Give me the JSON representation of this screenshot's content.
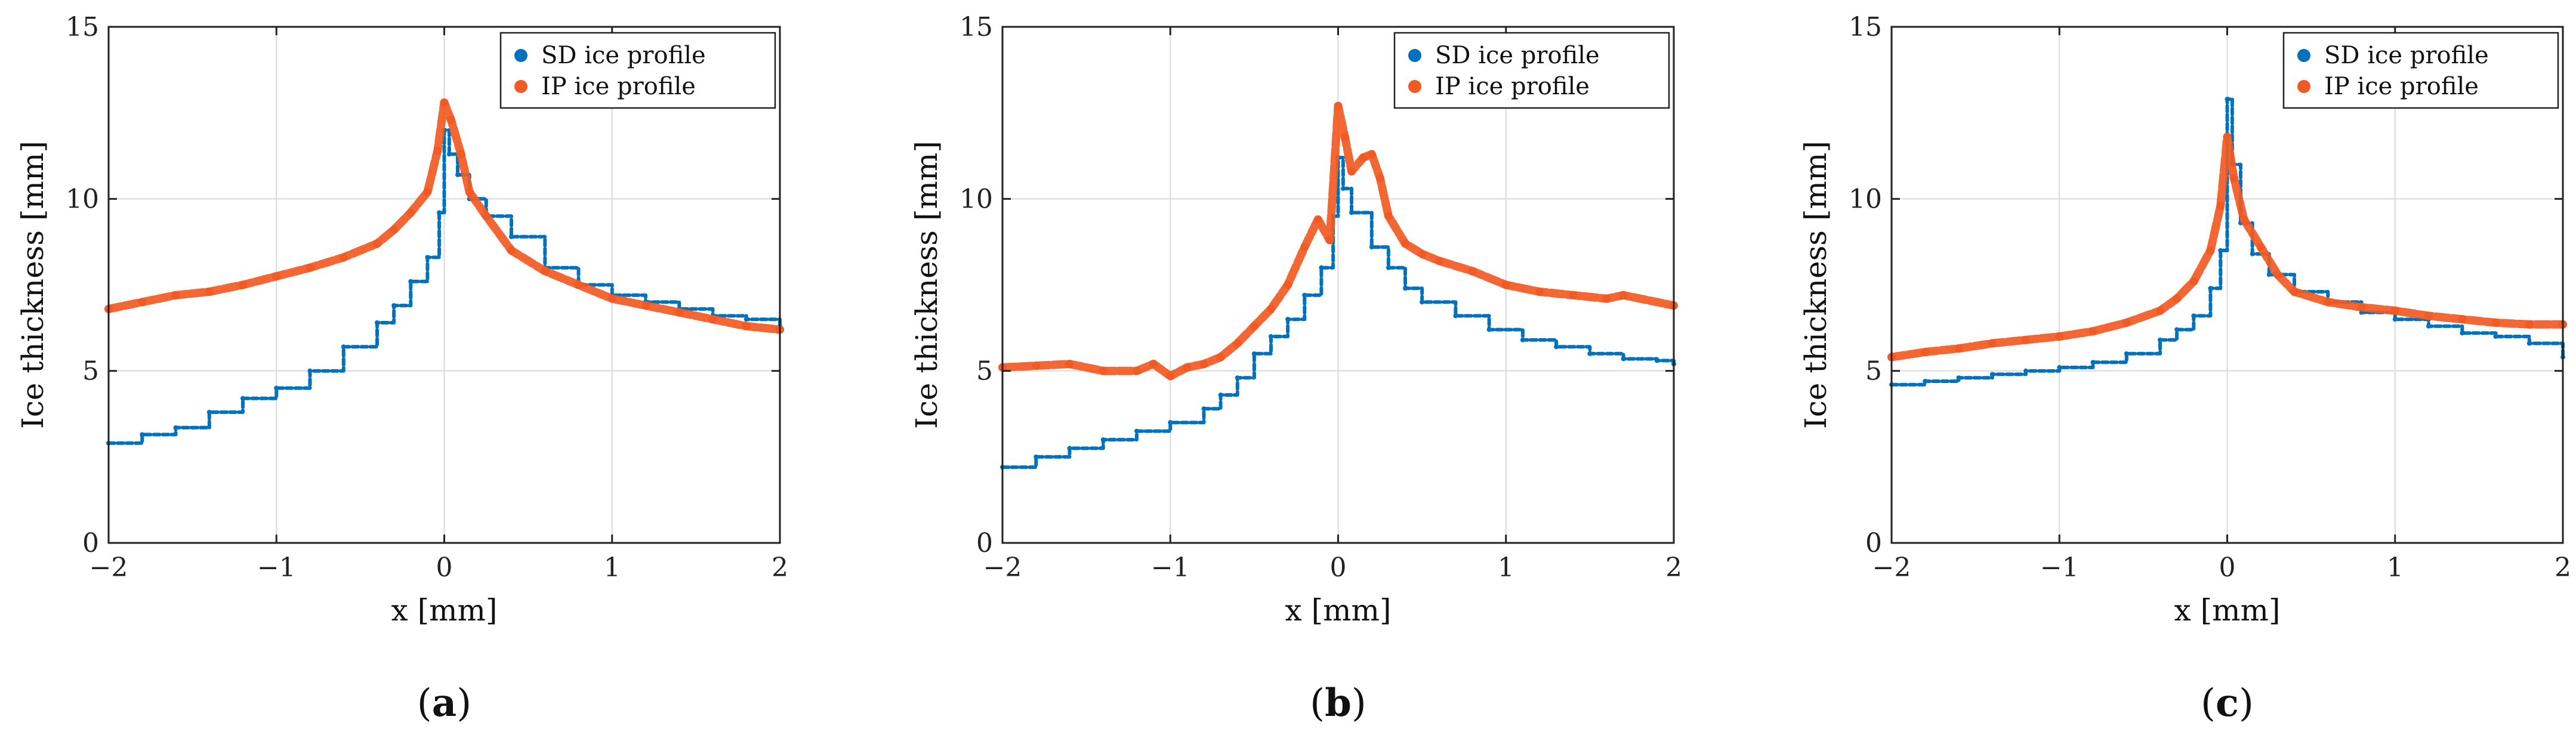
{
  "chart_data": [
    {
      "type": "scatter",
      "panel_label": "a",
      "xlabel": "x [mm]",
      "ylabel": "Ice thickness [mm]",
      "xlim": [
        -2,
        2
      ],
      "ylim": [
        0,
        15
      ],
      "xticks": [
        -2,
        -1,
        0,
        1,
        2
      ],
      "yticks": [
        0,
        5,
        10,
        15
      ],
      "grid": true,
      "legend_position": "top-right",
      "series": [
        {
          "name": "SD ice profile",
          "color": "#0072BD",
          "points": [
            [
              -2.0,
              2.9
            ],
            [
              -1.8,
              3.15
            ],
            [
              -1.6,
              3.35
            ],
            [
              -1.4,
              3.8
            ],
            [
              -1.2,
              4.2
            ],
            [
              -1.0,
              4.5
            ],
            [
              -0.8,
              5.0
            ],
            [
              -0.6,
              5.7
            ],
            [
              -0.4,
              6.4
            ],
            [
              -0.3,
              6.9
            ],
            [
              -0.2,
              7.6
            ],
            [
              -0.1,
              8.3
            ],
            [
              -0.03,
              9.6
            ],
            [
              0.0,
              12.0
            ],
            [
              0.03,
              11.3
            ],
            [
              0.08,
              10.7
            ],
            [
              0.15,
              10.0
            ],
            [
              0.25,
              9.5
            ],
            [
              0.4,
              8.9
            ],
            [
              0.6,
              8.0
            ],
            [
              0.8,
              7.5
            ],
            [
              1.0,
              7.2
            ],
            [
              1.2,
              7.0
            ],
            [
              1.4,
              6.8
            ],
            [
              1.6,
              6.6
            ],
            [
              1.8,
              6.5
            ],
            [
              2.0,
              6.3
            ]
          ]
        },
        {
          "name": "IP ice profile",
          "color": "#F15A22",
          "points": [
            [
              -2.0,
              6.8
            ],
            [
              -1.8,
              7.0
            ],
            [
              -1.6,
              7.2
            ],
            [
              -1.4,
              7.3
            ],
            [
              -1.2,
              7.5
            ],
            [
              -1.0,
              7.75
            ],
            [
              -0.8,
              8.0
            ],
            [
              -0.6,
              8.3
            ],
            [
              -0.4,
              8.7
            ],
            [
              -0.3,
              9.1
            ],
            [
              -0.2,
              9.6
            ],
            [
              -0.1,
              10.2
            ],
            [
              -0.04,
              11.4
            ],
            [
              0.0,
              12.8
            ],
            [
              0.04,
              12.3
            ],
            [
              0.1,
              11.3
            ],
            [
              0.15,
              10.2
            ],
            [
              0.25,
              9.5
            ],
            [
              0.4,
              8.5
            ],
            [
              0.6,
              7.9
            ],
            [
              0.8,
              7.5
            ],
            [
              1.0,
              7.1
            ],
            [
              1.2,
              6.9
            ],
            [
              1.4,
              6.7
            ],
            [
              1.6,
              6.5
            ],
            [
              1.8,
              6.3
            ],
            [
              2.0,
              6.2
            ]
          ]
        }
      ]
    },
    {
      "type": "scatter",
      "panel_label": "b",
      "xlabel": "x [mm]",
      "ylabel": "Ice thickness [mm]",
      "xlim": [
        -2,
        2
      ],
      "ylim": [
        0,
        15
      ],
      "xticks": [
        -2,
        -1,
        0,
        1,
        2
      ],
      "yticks": [
        0,
        5,
        10,
        15
      ],
      "grid": true,
      "legend_position": "top-right",
      "series": [
        {
          "name": "SD ice profile",
          "color": "#0072BD",
          "points": [
            [
              -2.0,
              2.2
            ],
            [
              -1.8,
              2.5
            ],
            [
              -1.6,
              2.75
            ],
            [
              -1.4,
              3.0
            ],
            [
              -1.2,
              3.25
            ],
            [
              -1.0,
              3.5
            ],
            [
              -0.8,
              3.9
            ],
            [
              -0.7,
              4.3
            ],
            [
              -0.6,
              4.8
            ],
            [
              -0.5,
              5.5
            ],
            [
              -0.4,
              6.0
            ],
            [
              -0.3,
              6.5
            ],
            [
              -0.2,
              7.2
            ],
            [
              -0.1,
              8.0
            ],
            [
              -0.03,
              9.5
            ],
            [
              0.0,
              11.2
            ],
            [
              0.03,
              10.3
            ],
            [
              0.08,
              9.6
            ],
            [
              0.2,
              8.6
            ],
            [
              0.3,
              8.0
            ],
            [
              0.4,
              7.4
            ],
            [
              0.5,
              7.0
            ],
            [
              0.7,
              6.6
            ],
            [
              0.9,
              6.2
            ],
            [
              1.1,
              5.9
            ],
            [
              1.3,
              5.7
            ],
            [
              1.5,
              5.5
            ],
            [
              1.7,
              5.35
            ],
            [
              1.9,
              5.3
            ],
            [
              2.0,
              5.2
            ]
          ]
        },
        {
          "name": "IP ice profile",
          "color": "#F15A22",
          "points": [
            [
              -2.0,
              5.1
            ],
            [
              -1.8,
              5.15
            ],
            [
              -1.6,
              5.2
            ],
            [
              -1.4,
              5.0
            ],
            [
              -1.2,
              5.0
            ],
            [
              -1.1,
              5.2
            ],
            [
              -1.0,
              4.85
            ],
            [
              -0.9,
              5.1
            ],
            [
              -0.8,
              5.2
            ],
            [
              -0.7,
              5.4
            ],
            [
              -0.6,
              5.8
            ],
            [
              -0.5,
              6.3
            ],
            [
              -0.4,
              6.8
            ],
            [
              -0.3,
              7.5
            ],
            [
              -0.2,
              8.6
            ],
            [
              -0.12,
              9.4
            ],
            [
              -0.05,
              8.8
            ],
            [
              0.0,
              12.7
            ],
            [
              0.04,
              11.8
            ],
            [
              0.08,
              10.8
            ],
            [
              0.15,
              11.2
            ],
            [
              0.2,
              11.3
            ],
            [
              0.25,
              10.6
            ],
            [
              0.3,
              9.5
            ],
            [
              0.4,
              8.7
            ],
            [
              0.5,
              8.4
            ],
            [
              0.6,
              8.2
            ],
            [
              0.8,
              7.9
            ],
            [
              1.0,
              7.5
            ],
            [
              1.2,
              7.3
            ],
            [
              1.4,
              7.2
            ],
            [
              1.6,
              7.1
            ],
            [
              1.7,
              7.2
            ],
            [
              2.0,
              6.9
            ]
          ]
        }
      ]
    },
    {
      "type": "scatter",
      "panel_label": "c",
      "xlabel": "x [mm]",
      "ylabel": "Ice thickness [mm]",
      "xlim": [
        -2,
        2
      ],
      "ylim": [
        0,
        15
      ],
      "xticks": [
        -2,
        -1,
        0,
        1,
        2
      ],
      "yticks": [
        0,
        5,
        10,
        15
      ],
      "grid": true,
      "legend_position": "top-right",
      "series": [
        {
          "name": "SD ice profile",
          "color": "#0072BD",
          "points": [
            [
              -2.0,
              4.6
            ],
            [
              -1.8,
              4.7
            ],
            [
              -1.6,
              4.8
            ],
            [
              -1.4,
              4.9
            ],
            [
              -1.2,
              5.0
            ],
            [
              -1.0,
              5.1
            ],
            [
              -0.8,
              5.25
            ],
            [
              -0.6,
              5.5
            ],
            [
              -0.4,
              5.9
            ],
            [
              -0.3,
              6.2
            ],
            [
              -0.2,
              6.6
            ],
            [
              -0.1,
              7.4
            ],
            [
              -0.04,
              8.5
            ],
            [
              0.0,
              12.9
            ],
            [
              0.03,
              11.0
            ],
            [
              0.08,
              9.3
            ],
            [
              0.15,
              8.4
            ],
            [
              0.25,
              7.8
            ],
            [
              0.4,
              7.3
            ],
            [
              0.6,
              7.0
            ],
            [
              0.8,
              6.7
            ],
            [
              1.0,
              6.5
            ],
            [
              1.2,
              6.3
            ],
            [
              1.4,
              6.1
            ],
            [
              1.6,
              6.0
            ],
            [
              1.8,
              5.8
            ],
            [
              2.0,
              5.4
            ]
          ]
        },
        {
          "name": "IP ice profile",
          "color": "#F15A22",
          "points": [
            [
              -2.0,
              5.4
            ],
            [
              -1.8,
              5.55
            ],
            [
              -1.6,
              5.65
            ],
            [
              -1.4,
              5.8
            ],
            [
              -1.2,
              5.9
            ],
            [
              -1.0,
              6.0
            ],
            [
              -0.8,
              6.15
            ],
            [
              -0.6,
              6.4
            ],
            [
              -0.4,
              6.75
            ],
            [
              -0.3,
              7.1
            ],
            [
              -0.2,
              7.6
            ],
            [
              -0.1,
              8.5
            ],
            [
              -0.04,
              9.8
            ],
            [
              0.0,
              11.8
            ],
            [
              0.04,
              10.6
            ],
            [
              0.1,
              9.4
            ],
            [
              0.2,
              8.6
            ],
            [
              0.3,
              7.8
            ],
            [
              0.4,
              7.3
            ],
            [
              0.6,
              7.0
            ],
            [
              0.8,
              6.85
            ],
            [
              1.0,
              6.75
            ],
            [
              1.2,
              6.6
            ],
            [
              1.4,
              6.5
            ],
            [
              1.6,
              6.4
            ],
            [
              1.8,
              6.35
            ],
            [
              2.0,
              6.35
            ]
          ]
        }
      ]
    }
  ]
}
